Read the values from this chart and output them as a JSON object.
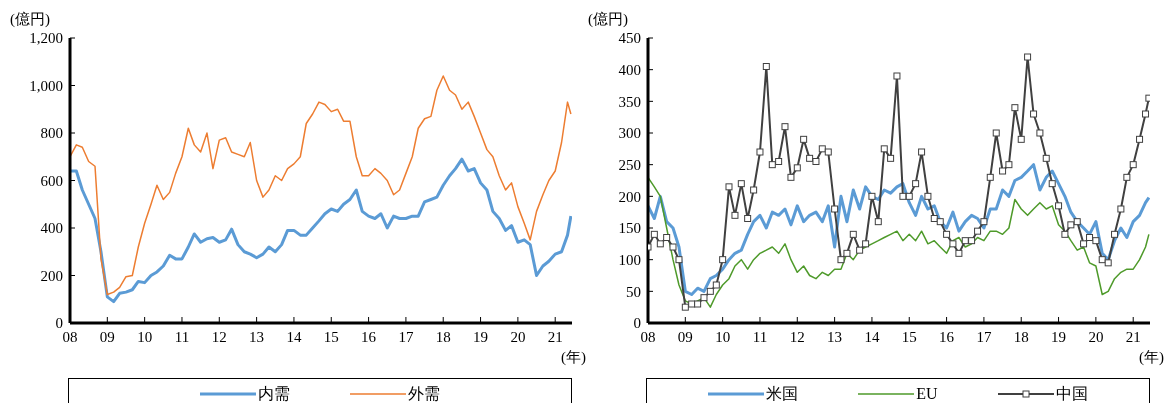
{
  "chart_data": [
    {
      "type": "line",
      "ylabel": "(億円)",
      "xlabel": "(年)",
      "legend": "bottom",
      "marker": "none",
      "line_style": "solid",
      "xlim": [
        2008,
        2021.45
      ],
      "xticks": [
        {
          "value": 2008,
          "label": "08"
        },
        {
          "value": 2009,
          "label": "09"
        },
        {
          "value": 2010,
          "label": "10"
        },
        {
          "value": 2011,
          "label": "11"
        },
        {
          "value": 2012,
          "label": "12"
        },
        {
          "value": 2013,
          "label": "13"
        },
        {
          "value": 2014,
          "label": "14"
        },
        {
          "value": 2015,
          "label": "15"
        },
        {
          "value": 2016,
          "label": "16"
        },
        {
          "value": 2017,
          "label": "17"
        },
        {
          "value": 2018,
          "label": "18"
        },
        {
          "value": 2019,
          "label": "19"
        },
        {
          "value": 2020,
          "label": "20"
        },
        {
          "value": 2021,
          "label": "21"
        }
      ],
      "ylim": [
        0,
        1200
      ],
      "yticks": [
        0,
        200,
        400,
        600,
        800,
        {
          "value": 1000,
          "label": "1,000"
        },
        {
          "value": 1200,
          "label": "1,200"
        }
      ],
      "x": [
        2008,
        2008.17,
        2008.33,
        2008.5,
        2008.67,
        2008.83,
        2009,
        2009.17,
        2009.33,
        2009.5,
        2009.67,
        2009.83,
        2010,
        2010.17,
        2010.33,
        2010.5,
        2010.67,
        2010.83,
        2011,
        2011.17,
        2011.33,
        2011.5,
        2011.67,
        2011.83,
        2012,
        2012.17,
        2012.33,
        2012.5,
        2012.67,
        2012.83,
        2013,
        2013.17,
        2013.33,
        2013.5,
        2013.67,
        2013.83,
        2014,
        2014.17,
        2014.33,
        2014.5,
        2014.67,
        2014.83,
        2015,
        2015.17,
        2015.33,
        2015.5,
        2015.67,
        2015.83,
        2016,
        2016.17,
        2016.33,
        2016.5,
        2016.67,
        2016.83,
        2017,
        2017.17,
        2017.33,
        2017.5,
        2017.67,
        2017.83,
        2018,
        2018.17,
        2018.33,
        2018.5,
        2018.67,
        2018.83,
        2019,
        2019.17,
        2019.33,
        2019.5,
        2019.67,
        2019.83,
        2020,
        2020.17,
        2020.33,
        2020.5,
        2020.67,
        2020.83,
        2021,
        2021.17,
        2021.33,
        2021.42
      ],
      "series": [
        {
          "name": "内需",
          "color": "#5b9bd5",
          "values": [
            640,
            640,
            560,
            500,
            440,
            300,
            110,
            90,
            125,
            130,
            140,
            175,
            170,
            200,
            215,
            240,
            285,
            270,
            270,
            320,
            375,
            340,
            355,
            360,
            340,
            350,
            395,
            330,
            300,
            290,
            275,
            290,
            320,
            300,
            330,
            390,
            390,
            370,
            370,
            400,
            430,
            460,
            480,
            470,
            500,
            520,
            560,
            470,
            450,
            440,
            460,
            400,
            450,
            440,
            440,
            450,
            450,
            510,
            520,
            530,
            580,
            620,
            650,
            690,
            640,
            650,
            590,
            560,
            470,
            440,
            390,
            410,
            340,
            350,
            330,
            200,
            240,
            260,
            290,
            300,
            370,
            450
          ]
        },
        {
          "name": "外需",
          "color": "#ed7d31",
          "values": [
            700,
            750,
            740,
            680,
            660,
            270,
            120,
            130,
            150,
            195,
            200,
            320,
            420,
            500,
            580,
            520,
            550,
            630,
            700,
            820,
            750,
            720,
            800,
            650,
            770,
            780,
            720,
            710,
            700,
            760,
            600,
            530,
            560,
            620,
            600,
            650,
            670,
            700,
            840,
            880,
            930,
            920,
            890,
            900,
            850,
            850,
            700,
            620,
            620,
            650,
            630,
            600,
            540,
            560,
            630,
            700,
            820,
            860,
            870,
            980,
            1040,
            980,
            960,
            900,
            930,
            870,
            800,
            730,
            700,
            620,
            560,
            590,
            490,
            420,
            350,
            470,
            540,
            600,
            640,
            760,
            930,
            880
          ]
        }
      ]
    },
    {
      "type": "line",
      "ylabel": "(億円)",
      "xlabel": "(年)",
      "legend": "bottom",
      "marker": "none",
      "line_style": "solid",
      "xlim": [
        2008,
        2021.45
      ],
      "xticks": [
        {
          "value": 2008,
          "label": "08"
        },
        {
          "value": 2009,
          "label": "09"
        },
        {
          "value": 2010,
          "label": "10"
        },
        {
          "value": 2011,
          "label": "11"
        },
        {
          "value": 2012,
          "label": "12"
        },
        {
          "value": 2013,
          "label": "13"
        },
        {
          "value": 2014,
          "label": "14"
        },
        {
          "value": 2015,
          "label": "15"
        },
        {
          "value": 2016,
          "label": "16"
        },
        {
          "value": 2017,
          "label": "17"
        },
        {
          "value": 2018,
          "label": "18"
        },
        {
          "value": 2019,
          "label": "19"
        },
        {
          "value": 2020,
          "label": "20"
        },
        {
          "value": 2021,
          "label": "21"
        }
      ],
      "ylim": [
        0,
        450
      ],
      "yticks": [
        0,
        50,
        100,
        150,
        200,
        250,
        300,
        350,
        400,
        450
      ],
      "x": [
        2008,
        2008.17,
        2008.33,
        2008.5,
        2008.67,
        2008.83,
        2009,
        2009.17,
        2009.33,
        2009.5,
        2009.67,
        2009.83,
        2010,
        2010.17,
        2010.33,
        2010.5,
        2010.67,
        2010.83,
        2011,
        2011.17,
        2011.33,
        2011.5,
        2011.67,
        2011.83,
        2012,
        2012.17,
        2012.33,
        2012.5,
        2012.67,
        2012.83,
        2013,
        2013.17,
        2013.33,
        2013.5,
        2013.67,
        2013.83,
        2014,
        2014.17,
        2014.33,
        2014.5,
        2014.67,
        2014.83,
        2015,
        2015.17,
        2015.33,
        2015.5,
        2015.67,
        2015.83,
        2016,
        2016.17,
        2016.33,
        2016.5,
        2016.67,
        2016.83,
        2017,
        2017.17,
        2017.33,
        2017.5,
        2017.67,
        2017.83,
        2018,
        2018.17,
        2018.33,
        2018.5,
        2018.67,
        2018.83,
        2019,
        2019.17,
        2019.33,
        2019.5,
        2019.67,
        2019.83,
        2020,
        2020.17,
        2020.33,
        2020.5,
        2020.67,
        2020.83,
        2021,
        2021.17,
        2021.33,
        2021.42
      ],
      "series": [
        {
          "name": "米国",
          "color": "#5b9bd5",
          "values": [
            185,
            165,
            200,
            160,
            150,
            120,
            50,
            45,
            55,
            50,
            70,
            75,
            85,
            100,
            110,
            115,
            140,
            160,
            170,
            150,
            175,
            170,
            180,
            155,
            185,
            160,
            170,
            175,
            160,
            185,
            120,
            200,
            160,
            210,
            180,
            215,
            200,
            195,
            210,
            205,
            215,
            220,
            190,
            170,
            200,
            180,
            185,
            160,
            150,
            175,
            145,
            160,
            170,
            165,
            150,
            180,
            180,
            210,
            200,
            225,
            230,
            240,
            250,
            210,
            230,
            240,
            220,
            200,
            175,
            160,
            150,
            140,
            160,
            110,
            100,
            130,
            150,
            135,
            160,
            170,
            190,
            198
          ]
        },
        {
          "name": "EU",
          "color": "#4e9a2a",
          "values": [
            230,
            215,
            200,
            150,
            100,
            60,
            35,
            30,
            35,
            40,
            25,
            45,
            60,
            70,
            90,
            100,
            85,
            100,
            110,
            115,
            120,
            110,
            125,
            100,
            80,
            90,
            75,
            70,
            80,
            75,
            85,
            85,
            110,
            100,
            115,
            120,
            125,
            130,
            135,
            140,
            145,
            130,
            140,
            130,
            145,
            125,
            130,
            120,
            110,
            130,
            135,
            120,
            125,
            135,
            130,
            145,
            145,
            140,
            150,
            195,
            180,
            170,
            180,
            190,
            180,
            185,
            155,
            145,
            130,
            115,
            120,
            95,
            90,
            45,
            50,
            70,
            80,
            85,
            85,
            100,
            120,
            140
          ]
        },
        {
          "name": "中国",
          "color": "#404040",
          "marker": "square",
          "values": [
            120,
            140,
            125,
            135,
            120,
            100,
            25,
            30,
            30,
            40,
            50,
            60,
            100,
            215,
            170,
            220,
            165,
            210,
            270,
            405,
            250,
            255,
            310,
            230,
            245,
            290,
            260,
            255,
            275,
            270,
            180,
            100,
            110,
            140,
            115,
            125,
            200,
            160,
            275,
            260,
            390,
            200,
            200,
            220,
            270,
            200,
            165,
            160,
            140,
            125,
            110,
            130,
            130,
            145,
            160,
            230,
            300,
            240,
            250,
            340,
            290,
            420,
            330,
            300,
            260,
            220,
            185,
            140,
            155,
            160,
            125,
            135,
            130,
            100,
            95,
            140,
            180,
            230,
            250,
            290,
            330,
            355
          ]
        }
      ]
    }
  ]
}
